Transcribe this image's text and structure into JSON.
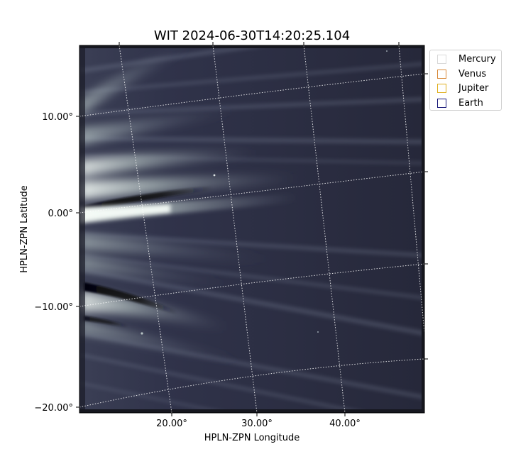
{
  "title": "WIT 2024-06-30T14:20:25.104",
  "axes": {
    "xlabel": "HPLN-ZPN Longitude",
    "ylabel": "HPLN-ZPN Latitude",
    "x_ticks": [
      "20.00°",
      "30.00°",
      "40.00°"
    ],
    "y_ticks": [
      "10.00°",
      "0.00°",
      "−10.00°",
      "−20.00°"
    ]
  },
  "legend": {
    "items": [
      {
        "label": "Mercury",
        "color": "#d9d9d9"
      },
      {
        "label": "Venus",
        "color": "#d98a3a"
      },
      {
        "label": "Jupiter",
        "color": "#e0b020"
      },
      {
        "label": "Earth",
        "color": "#1a1a7a"
      }
    ]
  },
  "colors": {
    "image_background": "#2a2c3e",
    "streamer_bright": "#e4efea",
    "streamer_mid": "#8a96a0",
    "dark_band": "#0d0d14",
    "grid": "#ffffff"
  }
}
